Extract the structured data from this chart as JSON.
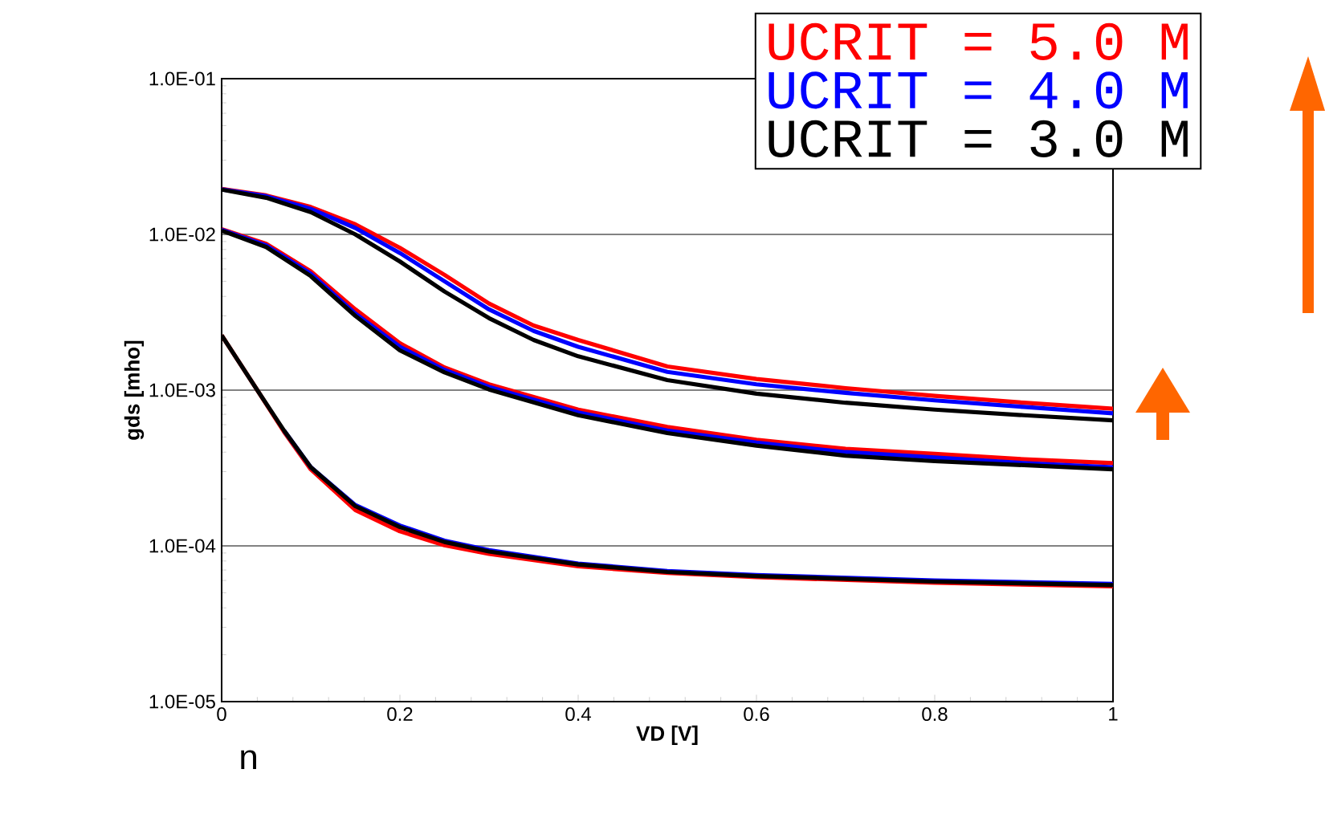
{
  "chart_data": {
    "type": "line",
    "xlabel": "VD [V]",
    "ylabel": "gds [mho]",
    "xlim": [
      0,
      1
    ],
    "xticks": [
      0,
      0.2,
      0.4,
      0.6,
      0.8,
      1
    ],
    "ylim": [
      1e-05,
      0.1
    ],
    "yticks": [
      {
        "value": 1e-05,
        "label": "1.0E-05"
      },
      {
        "value": 0.0001,
        "label": "1.0E-04"
      },
      {
        "value": 0.001,
        "label": "1.0E-03"
      },
      {
        "value": 0.01,
        "label": "1.0E-02"
      },
      {
        "value": 0.1,
        "label": "1.0E-01"
      }
    ],
    "log": "y",
    "grid": "y",
    "legend": "top right",
    "marker": "none",
    "line_style": "solid",
    "annotations": [
      "n"
    ],
    "series": [
      {
        "name": "UCRIT = 5.0 M",
        "color": "#ff0000",
        "x": [
          0,
          0.05,
          0.1,
          0.15,
          0.2,
          0.25,
          0.3,
          0.35,
          0.4,
          0.5,
          0.6,
          0.7,
          0.8,
          0.9,
          1
        ],
        "values": [
          0.0196,
          0.0178,
          0.015,
          0.0116,
          0.0082,
          0.0055,
          0.0036,
          0.0026,
          0.0021,
          0.00142,
          0.00118,
          0.00103,
          0.00092,
          0.00083,
          0.00076
        ]
      },
      {
        "name": "UCRIT = 4.0 M",
        "color": "#0000ff",
        "x": [
          0,
          0.05,
          0.1,
          0.15,
          0.2,
          0.25,
          0.3,
          0.35,
          0.4,
          0.5,
          0.6,
          0.7,
          0.8,
          0.9,
          1
        ],
        "values": [
          0.0195,
          0.0176,
          0.0146,
          0.011,
          0.0076,
          0.005,
          0.0033,
          0.0024,
          0.0019,
          0.00131,
          0.00109,
          0.00096,
          0.00086,
          0.00078,
          0.00071
        ]
      },
      {
        "name": "UCRIT = 3.0 M",
        "color": "#000000",
        "x": [
          0,
          0.05,
          0.1,
          0.15,
          0.2,
          0.25,
          0.3,
          0.35,
          0.4,
          0.5,
          0.6,
          0.7,
          0.8,
          0.9,
          1
        ],
        "values": [
          0.0194,
          0.0172,
          0.0139,
          0.01,
          0.0067,
          0.0043,
          0.0029,
          0.0021,
          0.00165,
          0.00116,
          0.00095,
          0.00083,
          0.00075,
          0.00069,
          0.00064
        ]
      },
      {
        "color": "#ff0000",
        "x": [
          0,
          0.05,
          0.1,
          0.15,
          0.2,
          0.25,
          0.3,
          0.4,
          0.5,
          0.6,
          0.7,
          0.8,
          0.9,
          1
        ],
        "values": [
          0.0108,
          0.0087,
          0.0058,
          0.0033,
          0.002,
          0.0014,
          0.00109,
          0.00075,
          0.00058,
          0.00048,
          0.00042,
          0.00039,
          0.00036,
          0.00034
        ]
      },
      {
        "color": "#0000ff",
        "x": [
          0,
          0.05,
          0.1,
          0.15,
          0.2,
          0.25,
          0.3,
          0.4,
          0.5,
          0.6,
          0.7,
          0.8,
          0.9,
          1
        ],
        "values": [
          0.0107,
          0.0085,
          0.0056,
          0.0031,
          0.0019,
          0.00135,
          0.00105,
          0.00072,
          0.00055,
          0.00046,
          0.0004,
          0.00037,
          0.00034,
          0.00032
        ]
      },
      {
        "color": "#000000",
        "x": [
          0,
          0.05,
          0.1,
          0.15,
          0.2,
          0.25,
          0.3,
          0.4,
          0.5,
          0.6,
          0.7,
          0.8,
          0.9,
          1
        ],
        "values": [
          0.0106,
          0.0083,
          0.0054,
          0.003,
          0.0018,
          0.0013,
          0.00101,
          0.00069,
          0.00053,
          0.00044,
          0.00038,
          0.00035,
          0.00033,
          0.00031
        ]
      },
      {
        "color": "#ff0000",
        "x": [
          0,
          0.04,
          0.07,
          0.1,
          0.15,
          0.2,
          0.25,
          0.3,
          0.4,
          0.5,
          0.6,
          0.8,
          1
        ],
        "values": [
          0.00225,
          0.001,
          0.00054,
          0.00031,
          0.00017,
          0.000124,
          0.000101,
          8.9e-05,
          7.4e-05,
          6.7e-05,
          6.3e-05,
          5.8e-05,
          5.5e-05
        ]
      },
      {
        "color": "#0000ff",
        "x": [
          0.07,
          0.1,
          0.15,
          0.2,
          0.25,
          0.3,
          0.4,
          0.5,
          0.6,
          0.8,
          1
        ],
        "values": [
          0.00055,
          0.00032,
          0.000183,
          0.000135,
          0.000108,
          9.4e-05,
          7.7e-05,
          6.9e-05,
          6.5e-05,
          6e-05,
          5.7e-05
        ]
      },
      {
        "color": "#000000",
        "x": [
          0,
          0.04,
          0.07,
          0.1,
          0.15,
          0.2,
          0.25,
          0.3,
          0.4,
          0.5,
          0.6,
          0.8,
          1
        ],
        "values": [
          0.00225,
          0.001,
          0.00055,
          0.00032,
          0.00018,
          0.000132,
          0.000106,
          9.2e-05,
          7.6e-05,
          6.8e-05,
          6.4e-05,
          5.9e-05,
          5.6e-05
        ]
      }
    ]
  }
}
